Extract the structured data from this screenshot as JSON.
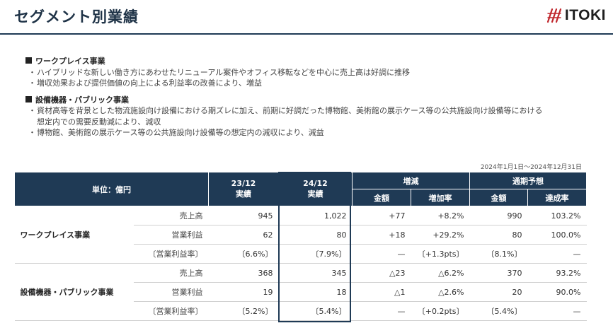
{
  "header": {
    "title": "セグメント別業績",
    "logo_text": "ITOKI"
  },
  "notes": [
    {
      "heading": "ワークプレイス事業",
      "bullets": [
        "ハイブリッドな新しい働き方にあわせたリニューアル案件やオフィス移転などを中心に売上高は好調に推移",
        "増収効果および提供価値の向上による利益率の改善により、増益"
      ]
    },
    {
      "heading": "設備機器・パブリック事業",
      "bullets": [
        "資材高等を背景とした物流施設向け設備における期ズレに加え、前期に好調だった博物館、美術館の展示ケース等の公共施設向け設備等における想定内での需要反動減により、減収",
        "博物館、美術館の展示ケース等の公共施設向け設備等の想定内の減収により、減益"
      ]
    }
  ],
  "period": "2024年1月1日〜2024年12月31日",
  "table": {
    "headers": {
      "unit": "単位：億円",
      "prev": "23/12",
      "prev_sub": "実績",
      "curr": "24/12",
      "curr_sub": "実績",
      "change": "増減",
      "change_amount": "金額",
      "change_rate": "増加率",
      "forecast": "通期予想",
      "forecast_amount": "金額",
      "forecast_rate": "達成率"
    },
    "segments": [
      {
        "name": "ワークプレイス事業",
        "rows": [
          {
            "metric": "売上高",
            "prev": "945",
            "curr": "1,022",
            "chg_amt": "+77",
            "chg_rate": "+8.2%",
            "fc_amt": "990",
            "fc_rate": "103.2%"
          },
          {
            "metric": "営業利益",
            "prev": "62",
            "curr": "80",
            "chg_amt": "+18",
            "chg_rate": "+29.2%",
            "fc_amt": "80",
            "fc_rate": "100.0%"
          },
          {
            "metric": "〔営業利益率〕",
            "prev": "〔6.6%〕",
            "curr": "〔7.9%〕",
            "chg_amt": "—",
            "chg_rate": "〔+1.3pts〕",
            "fc_amt": "〔8.1%〕",
            "fc_rate": "—"
          }
        ]
      },
      {
        "name": "設備機器・パブリック事業",
        "rows": [
          {
            "metric": "売上高",
            "prev": "368",
            "curr": "345",
            "chg_amt": "△23",
            "chg_rate": "△6.2%",
            "fc_amt": "370",
            "fc_rate": "93.2%"
          },
          {
            "metric": "営業利益",
            "prev": "19",
            "curr": "18",
            "chg_amt": "△1",
            "chg_rate": "△2.6%",
            "fc_amt": "20",
            "fc_rate": "90.0%"
          },
          {
            "metric": "〔営業利益率〕",
            "prev": "〔5.2%〕",
            "curr": "〔5.4%〕",
            "chg_amt": "—",
            "chg_rate": "〔+0.2pts〕",
            "fc_amt": "〔5.4%〕",
            "fc_rate": "—"
          }
        ]
      }
    ]
  },
  "colors": {
    "header_navy": "#1f3a55",
    "logo_red": "#c0272d"
  }
}
